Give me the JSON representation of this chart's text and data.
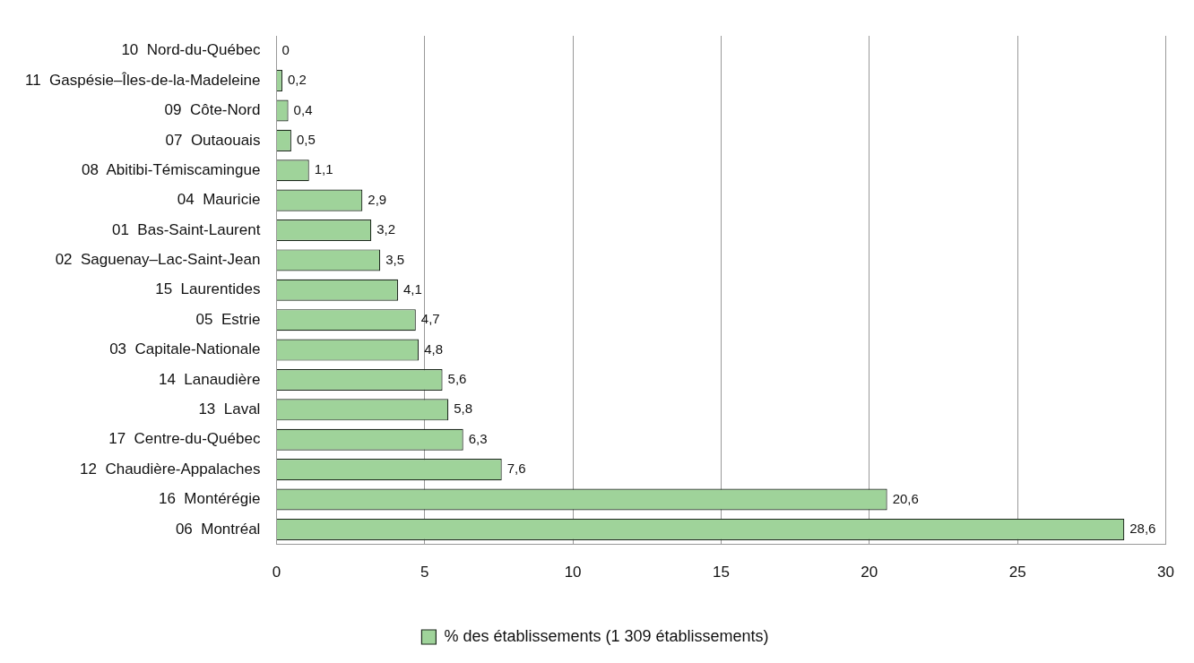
{
  "chart_data": {
    "type": "bar",
    "orientation": "horizontal",
    "categories": [
      "10  Nord-du-Québec",
      "11  Gaspésie–Îles-de-la-Madeleine",
      "09  Côte-Nord",
      "07  Outaouais",
      "08  Abitibi-Témiscamingue",
      "04  Mauricie",
      "01  Bas-Saint-Laurent",
      "02  Saguenay–Lac-Saint-Jean",
      "15  Laurentides",
      "05  Estrie",
      "03  Capitale-Nationale",
      "14  Lanaudière",
      "13  Laval",
      "17  Centre-du-Québec",
      "12  Chaudière-Appalaches",
      "16  Montérégie",
      "06  Montréal"
    ],
    "series": [
      {
        "name": "% des établissements (1 309 établissements)",
        "color": "#9fd39a",
        "values": [
          0,
          0.2,
          0.4,
          0.5,
          1.1,
          2.9,
          3.2,
          3.5,
          4.1,
          4.7,
          4.8,
          5.6,
          5.8,
          6.3,
          7.6,
          20.6,
          28.6
        ],
        "value_labels": [
          "0",
          "0,2",
          "0,4",
          "0,5",
          "1,1",
          "2,9",
          "3,2",
          "3,5",
          "4,1",
          "4,7",
          "4,8",
          "5,6",
          "5,8",
          "6,3",
          "7,6",
          "20,6",
          "28,6"
        ]
      }
    ],
    "xlim": [
      0,
      30
    ],
    "xticks": [
      0,
      5,
      10,
      15,
      20,
      25,
      30
    ],
    "grid": "x",
    "legend": "bottom"
  }
}
